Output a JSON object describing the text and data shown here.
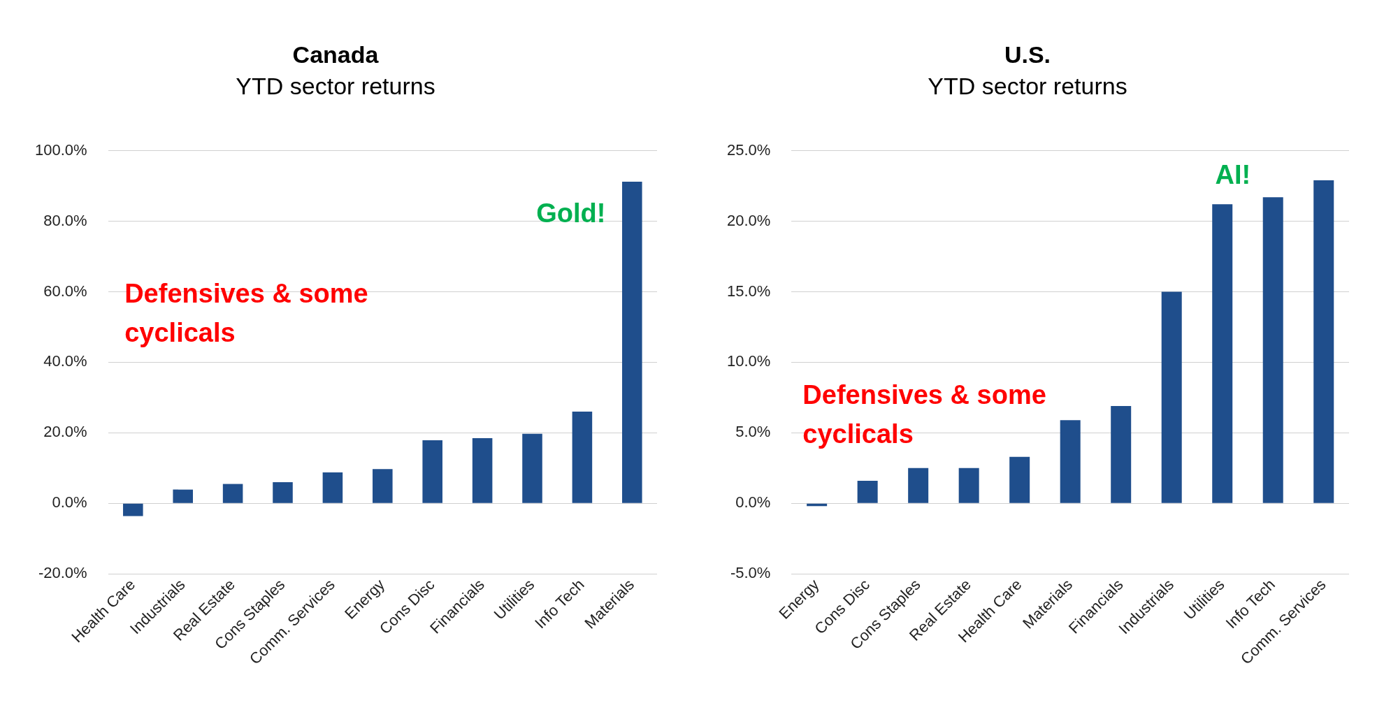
{
  "chart_data": [
    {
      "type": "bar",
      "title": "Canada",
      "subtitle": "YTD sector returns",
      "categories": [
        "Health Care",
        "Industrials",
        "Real Estate",
        "Cons Staples",
        "Comm. Services",
        "Energy",
        "Cons Disc",
        "Financials",
        "Utilities",
        "Info Tech",
        "Materials"
      ],
      "values": [
        -3.6,
        3.9,
        5.5,
        6,
        8.8,
        9.7,
        17.9,
        18.5,
        19.7,
        26,
        91.2
      ],
      "color": "#1f4e8c",
      "ylim": [
        -20,
        100
      ],
      "yticks": [
        {
          "value": -20,
          "label": "-20.0%"
        },
        {
          "value": 0,
          "label": "0.0%"
        },
        {
          "value": 20,
          "label": "20.0%"
        },
        {
          "value": 40,
          "label": "40.0%"
        },
        {
          "value": 60,
          "label": "60.0%"
        },
        {
          "value": 80,
          "label": "80.0%"
        },
        {
          "value": 100,
          "label": "100.0%"
        }
      ],
      "grid": "y",
      "legend": false,
      "annotations": [
        "Defensives & some cyclicals",
        "Gold!"
      ]
    },
    {
      "type": "bar",
      "title": "U.S.",
      "subtitle": "YTD sector returns",
      "categories": [
        "Energy",
        "Cons Disc",
        "Cons Staples",
        "Real Estate",
        "Health Care",
        "Materials",
        "Financials",
        "Industrials",
        "Utilities",
        "Info Tech",
        "Comm. Services"
      ],
      "values": [
        -0.2,
        1.6,
        2.5,
        2.5,
        3.3,
        5.9,
        6.9,
        15,
        21.2,
        21.7,
        22.9
      ],
      "color": "#1f4e8c",
      "ylim": [
        -5,
        25
      ],
      "yticks": [
        {
          "value": -5,
          "label": "-5.0%"
        },
        {
          "value": 0,
          "label": "0.0%"
        },
        {
          "value": 5,
          "label": "5.0%"
        },
        {
          "value": 10,
          "label": "10.0%"
        },
        {
          "value": 15,
          "label": "15.0%"
        },
        {
          "value": 20,
          "label": "20.0%"
        },
        {
          "value": 25,
          "label": "25.0%"
        }
      ],
      "grid": "y",
      "legend": false,
      "annotations": [
        "Defensives & some cyclicals",
        "AI!"
      ]
    }
  ]
}
